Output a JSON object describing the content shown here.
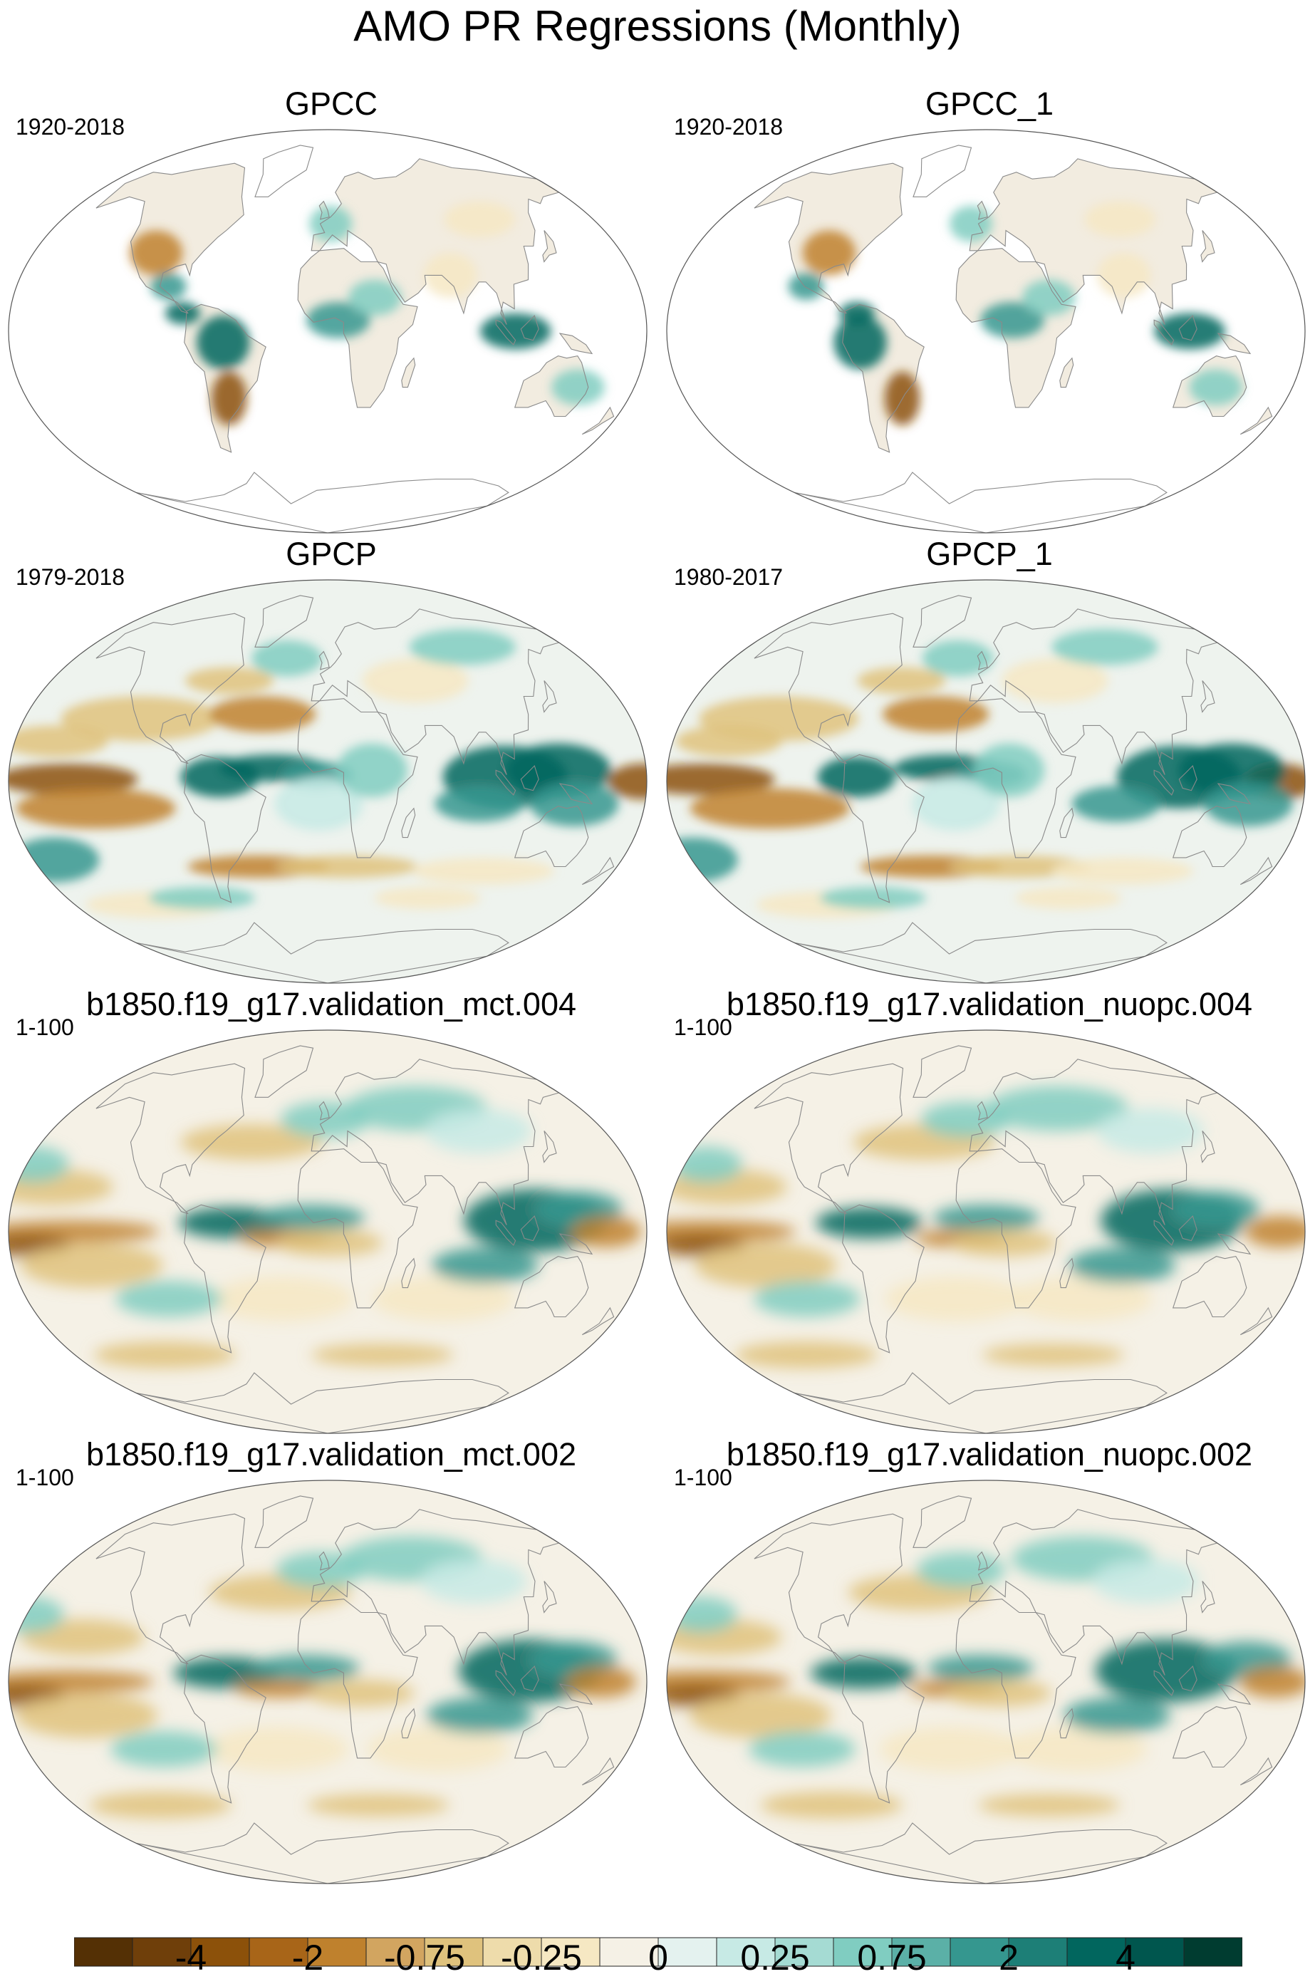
{
  "title": "AMO PR Regressions (Monthly)",
  "panels": [
    {
      "title": "GPCC",
      "years": "1920-2018",
      "kind": "land"
    },
    {
      "title": "GPCC_1",
      "years": "1920-2018",
      "kind": "land"
    },
    {
      "title": "GPCP",
      "years": "1979-2018",
      "kind": "obs"
    },
    {
      "title": "GPCP_1",
      "years": "1980-2017",
      "kind": "obs"
    },
    {
      "title": "b1850.f19_g17.validation_mct.004",
      "years": "1-100",
      "kind": "model"
    },
    {
      "title": "b1850.f19_g17.validation_nuopc.004",
      "years": "1-100",
      "kind": "model"
    },
    {
      "title": "b1850.f19_g17.validation_mct.002",
      "years": "1-100",
      "kind": "model"
    },
    {
      "title": "b1850.f19_g17.validation_nuopc.002",
      "years": "1-100",
      "kind": "model"
    }
  ],
  "colorbar": {
    "colors": [
      "#543005",
      "#6f3f0a",
      "#8c510a",
      "#a86518",
      "#bf812d",
      "#d2a560",
      "#dfc27d",
      "#eedcab",
      "#f6e8c3",
      "#f5f1e6",
      "#e4f2ef",
      "#c7eae5",
      "#a5dbd3",
      "#80cdc1",
      "#5bb0a7",
      "#35978f",
      "#1d7f77",
      "#01665e",
      "#00564e",
      "#003c30"
    ],
    "labels": [
      "-4",
      "-2",
      "-0.75",
      "-0.25",
      "0",
      "0.25",
      "0.75",
      "2",
      "4"
    ]
  }
}
